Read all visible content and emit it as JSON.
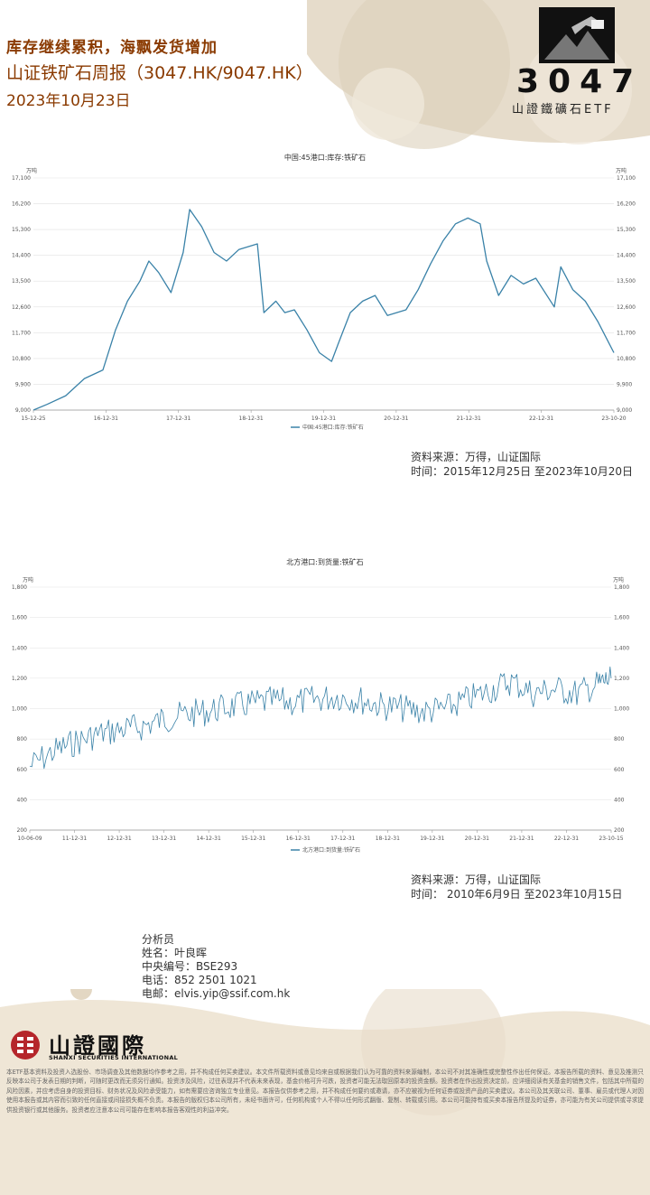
{
  "header": {
    "title_line1": "库存继续累积，海飘发货增加",
    "title_line2": "山证铁矿石周报（3047.HK/9047.HK）",
    "date": "2023年10月23日",
    "logo_number": "3047",
    "logo_subtitle": "山證鐵礦石ETF"
  },
  "colors": {
    "series": "#3a82a8",
    "title": "#8a3a00",
    "bg_accent": "#e8dcc8"
  },
  "charts": [
    {
      "title": "中国:45港口:库存:铁矿石",
      "unit": "万吨",
      "legend": "中国:45港口:库存:铁矿石",
      "source": "资料来源：万得，山证国际",
      "period": "时间：2015年12月25日 至2023年10月20日"
    },
    {
      "title": "北方港口:到货量:铁矿石",
      "unit": "万吨",
      "legend": "北方港口:到货量:铁矿石",
      "source": "资料来源：万得，山证国际",
      "period": "时间： 2010年6月9日 至2023年10月15日"
    }
  ],
  "chart_data": [
    {
      "type": "line",
      "title": "中国:45港口:库存:铁矿石",
      "ylabel": "万吨",
      "ylim": [
        9000,
        17100
      ],
      "yticks": [
        "9,000",
        "9,900",
        "10,800",
        "11,700",
        "12,600",
        "13,500",
        "14,400",
        "15,300",
        "16,200",
        "17,100"
      ],
      "xticks": [
        "15-12-25",
        "16-12-31",
        "17-12-31",
        "18-12-31",
        "19-12-31",
        "20-12-31",
        "21-12-31",
        "22-12-31",
        "23-10-20"
      ],
      "xlim": [
        "2015-12-25",
        "2023-10-20"
      ],
      "series": [
        {
          "name": "中国:45港口:库存:铁矿石",
          "x": [
            "2015-12-25",
            "2016-03-01",
            "2016-06-01",
            "2016-09-01",
            "2016-12-01",
            "2017-02-01",
            "2017-04-01",
            "2017-06-01",
            "2017-07-15",
            "2017-09-01",
            "2017-11-01",
            "2017-12-31",
            "2018-02-01",
            "2018-04-01",
            "2018-06-01",
            "2018-08-01",
            "2018-10-01",
            "2018-12-31",
            "2019-02-01",
            "2019-04-01",
            "2019-05-15",
            "2019-07-01",
            "2019-09-01",
            "2019-11-01",
            "2019-12-31",
            "2020-02-01",
            "2020-04-01",
            "2020-06-01",
            "2020-08-01",
            "2020-10-01",
            "2020-12-31",
            "2021-03-01",
            "2021-05-01",
            "2021-07-01",
            "2021-09-01",
            "2021-11-01",
            "2021-12-31",
            "2022-02-01",
            "2022-04-01",
            "2022-06-01",
            "2022-08-01",
            "2022-10-01",
            "2022-12-31",
            "2023-02-01",
            "2023-04-01",
            "2023-06-01",
            "2023-08-01",
            "2023-10-20"
          ],
          "values": [
            9000,
            9200,
            9500,
            10100,
            10400,
            11800,
            12800,
            13500,
            14200,
            13800,
            13100,
            14500,
            16000,
            15400,
            14500,
            14200,
            14600,
            14800,
            12400,
            12800,
            12400,
            12500,
            11800,
            11000,
            10700,
            11300,
            12400,
            12800,
            13000,
            12300,
            12500,
            13200,
            14100,
            14900,
            15500,
            15700,
            15500,
            14200,
            13000,
            13700,
            13400,
            13600,
            12600,
            14000,
            13200,
            12800,
            12100,
            11000
          ]
        }
      ]
    },
    {
      "type": "line",
      "title": "北方港口:到货量:铁矿石",
      "ylabel": "万吨",
      "ylim": [
        200,
        1800
      ],
      "yticks": [
        "200",
        "400",
        "600",
        "800",
        "1,000",
        "1,200",
        "1,400",
        "1,600",
        "1,800"
      ],
      "xticks": [
        "10-06-09",
        "11-12-31",
        "12-12-31",
        "13-12-31",
        "14-12-31",
        "15-12-31",
        "16-12-31",
        "17-12-31",
        "18-12-31",
        "19-12-31",
        "20-12-31",
        "21-12-31",
        "22-12-31",
        "23-10-15"
      ],
      "xlim": [
        "2010-06-09",
        "2023-10-15"
      ],
      "series": [
        {
          "name": "北方港口:到货量:铁矿石",
          "x": [
            "2010-06-09",
            "2010-12-31",
            "2011-06-30",
            "2011-12-31",
            "2012-06-30",
            "2012-12-31",
            "2013-06-30",
            "2013-12-31",
            "2014-06-30",
            "2014-12-31",
            "2015-06-30",
            "2015-12-31",
            "2016-06-30",
            "2016-12-31",
            "2017-06-30",
            "2017-12-31",
            "2018-06-30",
            "2018-12-31",
            "2019-06-30",
            "2019-12-31",
            "2020-06-30",
            "2020-12-31",
            "2021-06-30",
            "2021-12-31",
            "2022-06-30",
            "2022-12-31",
            "2023-06-30",
            "2023-10-15"
          ],
          "values": [
            620,
            720,
            780,
            830,
            860,
            880,
            930,
            960,
            980,
            1010,
            1030,
            1050,
            1040,
            1060,
            1080,
            1060,
            1020,
            1000,
            980,
            1000,
            1060,
            1120,
            1180,
            1100,
            1130,
            1100,
            1160,
            1200
          ]
        }
      ]
    }
  ],
  "analyst": {
    "heading": "分析员",
    "name": "姓名：叶良晖",
    "id": "中央编号：BSE293",
    "phone": "电话：852 2501 1021",
    "email": "电邮：elvis.yip@ssif.com.hk"
  },
  "footer": {
    "brand_cn": "山證國際",
    "brand_en": "SHANXI SECURITIES INTERNATIONAL",
    "disclaimer": "本ETF基本资料及投资入选股份、市场调查及其他数据均作参考之用，并不构成任何买卖建议。本文件所载资料或意见均来自或根据我们认为可靠的资料来源编制，本公司不对其准确性或完整性作出任何保证。本报告所载的资料、意见及推测只反映本公司于发表日期的判断，可随时更改而无须另行通知。投资涉及风险，过往表现并不代表未来表现，基金价格可升可跌，投资者可能无法取回原本的投资金额。投资者在作出投资决定前，应详细阅读有关基金的销售文件，包括其中所载的风险因素，并应考虑自身的投资目标、财务状况及风险承受能力，如有需要应咨询独立专业意见。本报告仅供参考之用，并不构成任何要约或邀请，亦不应被视为任何证券或投资产品的买卖建议。本公司及其关联公司、董事、雇员或代理人对因使用本报告或其内容而引致的任何直接或间接损失概不负责。本报告的版权归本公司所有，未经书面许可，任何机构或个人不得以任何形式翻版、复制、转载或引用。本公司可能持有或买卖本报告所提及的证券，亦可能为有关公司提供或寻求提供投资银行或其他服务。投资者应注意本公司可能存在影响本报告客观性的利益冲突。"
  }
}
